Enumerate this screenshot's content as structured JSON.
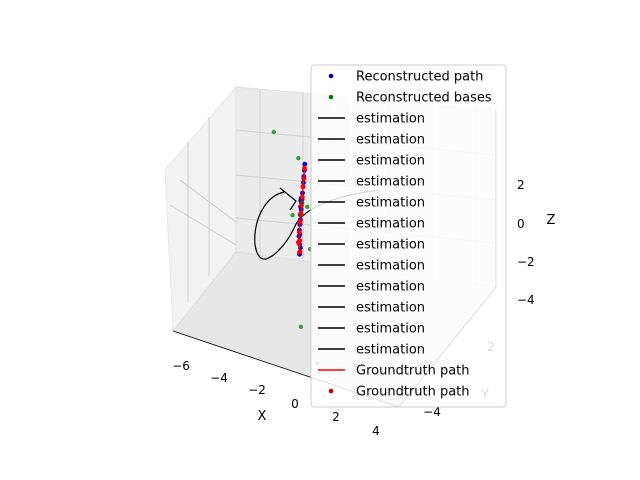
{
  "chart_data": {
    "type": "scatter",
    "projection": "3d",
    "title": "",
    "axes": {
      "x": {
        "label": "X",
        "ticks": [
          "−6",
          "−4",
          "−2",
          "0",
          "2",
          "4"
        ]
      },
      "y": {
        "label": "Y",
        "ticks": [
          "−4",
          "2"
        ]
      },
      "z": {
        "label": "Z",
        "ticks": [
          "2",
          "0",
          "−2",
          "−4"
        ]
      }
    },
    "grid": true,
    "legend_position": "upper-right",
    "legend": [
      {
        "label": "Reconstructed path",
        "marker": "dot",
        "color": "#0000cc"
      },
      {
        "label": "Reconstructed bases",
        "marker": "dot",
        "color": "#008000"
      },
      {
        "label": "estimation",
        "marker": "line",
        "color": "#000000"
      },
      {
        "label": "estimation",
        "marker": "line",
        "color": "#000000"
      },
      {
        "label": "estimation",
        "marker": "line",
        "color": "#000000"
      },
      {
        "label": "estimation",
        "marker": "line",
        "color": "#000000"
      },
      {
        "label": "estimation",
        "marker": "line",
        "color": "#000000"
      },
      {
        "label": "estimation",
        "marker": "line",
        "color": "#000000"
      },
      {
        "label": "estimation",
        "marker": "line",
        "color": "#000000"
      },
      {
        "label": "estimation",
        "marker": "line",
        "color": "#000000"
      },
      {
        "label": "estimation",
        "marker": "line",
        "color": "#000000"
      },
      {
        "label": "estimation",
        "marker": "line",
        "color": "#000000"
      },
      {
        "label": "estimation",
        "marker": "line",
        "color": "#000000"
      },
      {
        "label": "estimation",
        "marker": "line",
        "color": "#000000"
      },
      {
        "label": "Groundtruth path",
        "marker": "line",
        "color": "#ff0000"
      },
      {
        "label": "Groundtruth path",
        "marker": "dot",
        "color": "#cc0000"
      }
    ],
    "series": [
      {
        "name": "Reconstructed path",
        "color": "#0000cc",
        "points": [
          [
            -1.6,
            -1.5,
            1.0
          ],
          [
            -1.5,
            -1.4,
            1.4
          ],
          [
            -1.3,
            -1.2,
            1.7
          ],
          [
            -1.1,
            -1.0,
            1.9
          ],
          [
            -0.9,
            -0.8,
            2.0
          ],
          [
            -0.7,
            -0.6,
            1.9
          ],
          [
            -0.5,
            -0.4,
            1.7
          ],
          [
            -1.7,
            -1.6,
            0.6
          ],
          [
            -1.8,
            -1.7,
            0.2
          ],
          [
            -1.6,
            -1.5,
            0.0
          ],
          [
            -1.3,
            -1.2,
            0.0
          ],
          [
            -1.0,
            -1.0,
            0.0
          ],
          [
            -0.7,
            -0.7,
            0.0
          ],
          [
            -0.4,
            -0.4,
            0.0
          ],
          [
            -0.1,
            -0.1,
            0.0
          ],
          [
            0.2,
            0.2,
            -0.1
          ],
          [
            0.5,
            0.5,
            -0.1
          ],
          [
            0.8,
            0.8,
            -0.2
          ],
          [
            1.1,
            1.1,
            -0.2
          ],
          [
            1.4,
            1.4,
            -0.3
          ],
          [
            1.7,
            1.7,
            -0.3
          ],
          [
            2.0,
            2.0,
            -0.3
          ],
          [
            2.3,
            2.3,
            -0.4
          ],
          [
            2.6,
            2.6,
            -0.4
          ],
          [
            2.9,
            2.9,
            -0.4
          ],
          [
            3.2,
            3.2,
            -0.4
          ]
        ]
      },
      {
        "name": "Reconstructed bases",
        "color": "#008000",
        "points": [
          [
            -3.5,
            -2.8,
            2.0
          ],
          [
            -2.5,
            -2.0,
            3.2
          ],
          [
            -1.5,
            -1.3,
            2.5
          ],
          [
            0.3,
            0.2,
            3.0
          ],
          [
            -3.8,
            -3.5,
            -1.5
          ],
          [
            -3.0,
            -2.0,
            -4.5
          ],
          [
            -0.5,
            -0.8,
            1.0
          ],
          [
            4.5,
            3.0,
            0.5
          ],
          [
            -2.0,
            -1.8,
            2.4
          ]
        ]
      },
      {
        "name": "Groundtruth path",
        "color": "#ff0000",
        "points": [
          [
            -1.7,
            -1.6,
            0.8
          ],
          [
            -1.8,
            -1.7,
            0.3
          ],
          [
            -1.5,
            -1.4,
            0.0
          ],
          [
            -1.0,
            -1.0,
            0.0
          ],
          [
            -0.5,
            -0.5,
            0.0
          ],
          [
            0.0,
            0.0,
            0.0
          ],
          [
            0.5,
            0.5,
            -0.1
          ],
          [
            1.0,
            1.0,
            -0.2
          ],
          [
            1.5,
            1.5,
            -0.3
          ],
          [
            2.0,
            2.0,
            -0.3
          ],
          [
            2.5,
            2.5,
            -0.4
          ],
          [
            3.0,
            3.0,
            -0.4
          ]
        ]
      }
    ]
  }
}
